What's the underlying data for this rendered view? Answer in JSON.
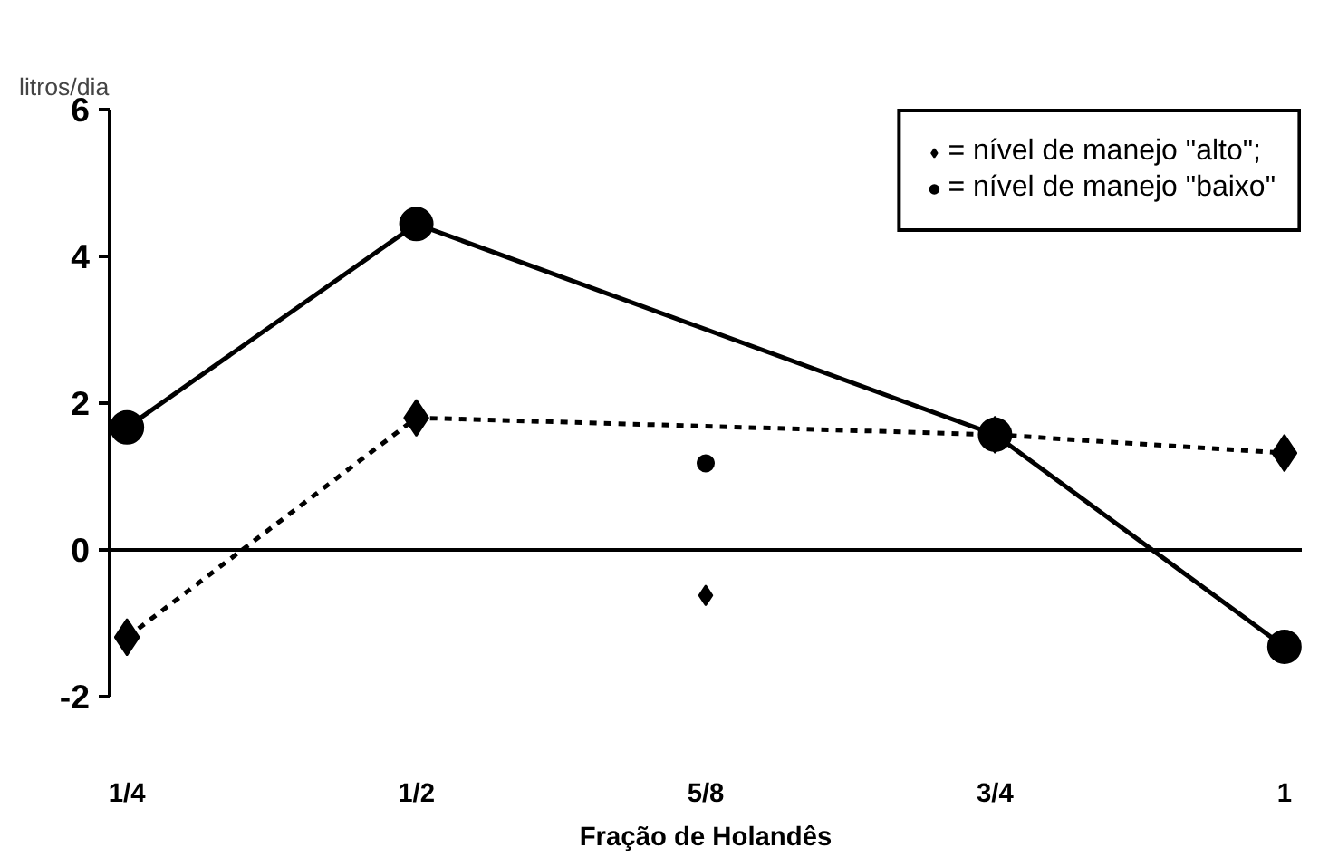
{
  "chart_data": {
    "type": "line",
    "ylabel": "litros/dia",
    "xlabel": "Fração de Holandês",
    "categories": [
      "1/4",
      "1/2",
      "5/8",
      "3/4",
      "1"
    ],
    "series": [
      {
        "name": "= nível de manejo \"alto\";",
        "color": "#000000",
        "marker": "diamond",
        "line_style": "dashed",
        "values": [
          -1.19,
          1.8,
          null,
          1.57,
          1.32
        ]
      },
      {
        "name": "= nível de manejo \"baixo\"",
        "color": "#000000",
        "marker": "circle",
        "line_style": "solid",
        "values": [
          1.67,
          4.44,
          null,
          1.57,
          -1.32
        ]
      },
      {
        "type": "scatter",
        "color": "#000000",
        "marker": "diamond",
        "values": [
          null,
          null,
          -0.62,
          null,
          null
        ]
      },
      {
        "type": "scatter",
        "color": "#000000",
        "marker": "circle",
        "values": [
          null,
          null,
          1.18,
          null,
          null
        ]
      }
    ],
    "ylim": [
      -2,
      6
    ],
    "yticks": [
      -2,
      0,
      2,
      4,
      6
    ],
    "ref_lines": [
      {
        "axis": "y",
        "value": 0,
        "color": "#000000"
      }
    ],
    "legend": "top right",
    "grid": false
  }
}
